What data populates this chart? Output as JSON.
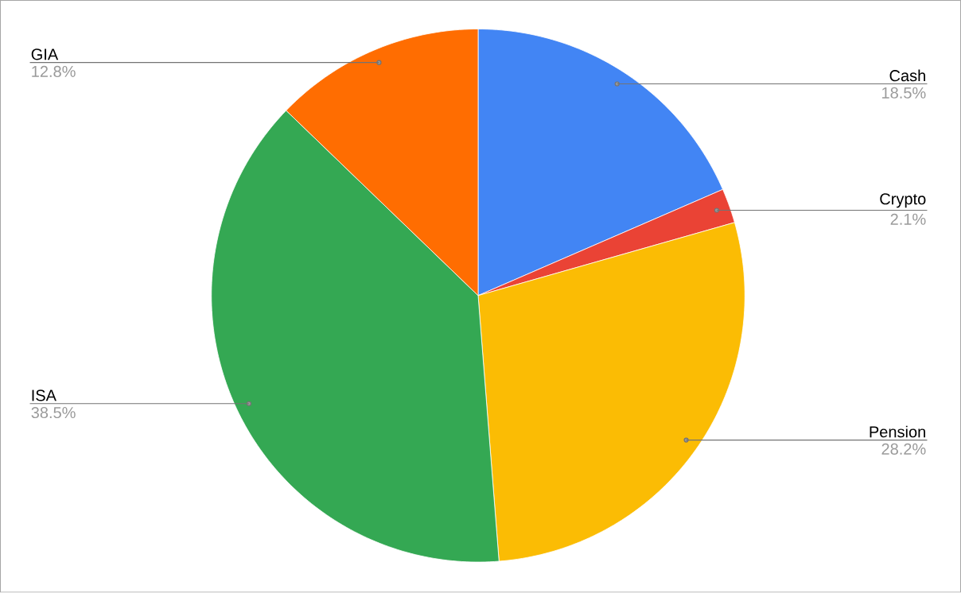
{
  "chart_data": {
    "type": "pie",
    "categories": [
      "Cash",
      "Crypto",
      "Pension",
      "ISA",
      "GIA"
    ],
    "values": [
      18.5,
      2.1,
      28.2,
      38.5,
      12.8
    ],
    "value_labels": [
      "18.5%",
      "2.1%",
      "28.2%",
      "38.5%",
      "12.8%"
    ],
    "colors": [
      "#4285f4",
      "#ea4335",
      "#fbbc04",
      "#34a853",
      "#ff6d01"
    ]
  }
}
